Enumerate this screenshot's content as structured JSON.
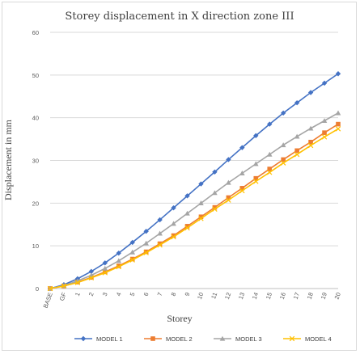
{
  "chart_data": {
    "type": "line",
    "title": "Storey displacement in X direction zone III",
    "xlabel": "Storey",
    "ylabel": "Displacement in mm",
    "ylim": [
      0,
      60
    ],
    "yticks": [
      0,
      10,
      20,
      30,
      40,
      50,
      60
    ],
    "categories": [
      "BASE",
      "GF",
      "1",
      "2",
      "3",
      "4",
      "5",
      "6",
      "7",
      "8",
      "9",
      "10",
      "11",
      "12",
      "13",
      "14",
      "15",
      "16",
      "17",
      "18",
      "19",
      "20"
    ],
    "grid": "horizontal",
    "legend_position": "bottom",
    "series": [
      {
        "name": "MODEL 1",
        "color": "#4472C4",
        "marker": "diamond",
        "values": [
          0,
          0.9,
          2.3,
          4.0,
          6.0,
          8.3,
          10.8,
          13.4,
          16.1,
          18.9,
          21.7,
          24.5,
          27.3,
          30.2,
          33.0,
          35.8,
          38.5,
          41.1,
          43.5,
          45.9,
          48.1,
          50.3
        ]
      },
      {
        "name": "MODEL 2",
        "color": "#ED7D31",
        "marker": "square",
        "values": [
          0,
          0.6,
          1.5,
          2.6,
          3.9,
          5.3,
          6.9,
          8.6,
          10.5,
          12.4,
          14.6,
          16.8,
          19.0,
          21.3,
          23.5,
          25.8,
          28.0,
          30.2,
          32.3,
          34.3,
          36.5,
          38.5
        ]
      },
      {
        "name": "MODEL 3",
        "color": "#A5A5A5",
        "marker": "triangle",
        "values": [
          0,
          0.7,
          1.8,
          3.1,
          4.7,
          6.5,
          8.5,
          10.6,
          12.9,
          15.2,
          17.6,
          20.0,
          22.4,
          24.8,
          27.0,
          29.2,
          31.4,
          33.6,
          35.6,
          37.5,
          39.3,
          41.1
        ]
      },
      {
        "name": "MODEL 4",
        "color": "#FFC000",
        "marker": "x",
        "values": [
          0,
          0.6,
          1.4,
          2.5,
          3.7,
          5.1,
          6.7,
          8.4,
          10.2,
          12.1,
          14.2,
          16.4,
          18.6,
          20.7,
          22.9,
          25.1,
          27.2,
          29.4,
          31.4,
          33.5,
          35.5,
          37.4
        ]
      }
    ]
  }
}
